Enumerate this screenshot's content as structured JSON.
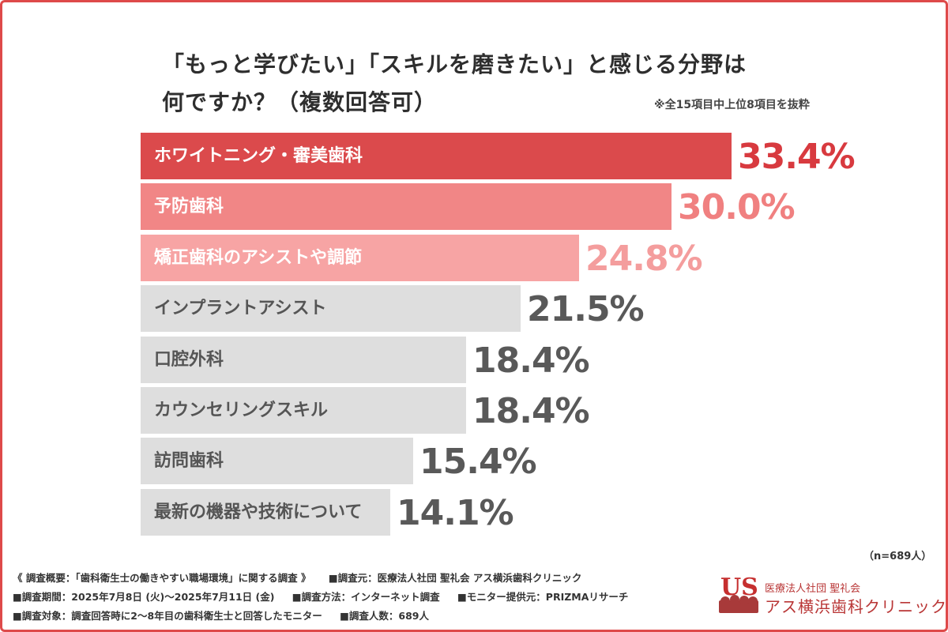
{
  "title_line1": "「もっと学びたい」「スキルを磨きたい」と感じる分野は",
  "title_line2": "何ですか？（複数回答可）",
  "note": "※全15項目中上位8項目を抜粋",
  "sample_size": "（n=689人）",
  "chart_data": {
    "type": "bar",
    "orientation": "horizontal",
    "categories": [
      "ホワイトニング・審美歯科",
      "予防歯科",
      "矯正歯科のアシストや調節",
      "インプラントアシスト",
      "口腔外科",
      "カウンセリングスキル",
      "訪問歯科",
      "最新の機器や技術について"
    ],
    "values": [
      33.4,
      30.0,
      24.8,
      21.5,
      18.4,
      18.4,
      15.4,
      14.1
    ],
    "value_labels": [
      "33.4%",
      "30.0%",
      "24.8%",
      "21.5%",
      "18.4%",
      "18.4%",
      "15.4%",
      "14.1%"
    ],
    "bar_colors": [
      "#db4a4c",
      "#f18686",
      "#f7a4a4",
      "#dedede",
      "#dedede",
      "#dedede",
      "#dedede",
      "#dedede"
    ],
    "label_colors": [
      "#ffffff",
      "#ffffff",
      "#ffffff",
      "#555555",
      "#555555",
      "#555555",
      "#555555",
      "#555555"
    ],
    "value_colors": [
      "#d83a3f",
      "#f08080",
      "#f49d9d",
      "#595959",
      "#595959",
      "#595959",
      "#595959",
      "#595959"
    ],
    "xlim": [
      0,
      35.5
    ],
    "grid": false,
    "legend": "none"
  },
  "footer": {
    "line1": [
      "《 調査概要：「歯科衛生士の働きやすい職場環境」に関する調査 》",
      "■調査元：医療法人社団 聖礼会 アス横浜歯科クリニック"
    ],
    "line2": [
      "■調査期間：2025年7月8日 (火)〜2025年7月11日 (金)",
      "■調査方法：インターネット調査",
      "■モニター提供元：PRIZMAリサーチ"
    ],
    "line3": [
      "■調査対象：調査回答時に2〜8年目の歯科衛生士と回答したモニター",
      "■調査人数：689人"
    ]
  },
  "logo": {
    "mark_text": "US",
    "org": "医療法人社団 聖礼会",
    "name": "アス横浜歯科クリニック",
    "color": "#b93636"
  }
}
